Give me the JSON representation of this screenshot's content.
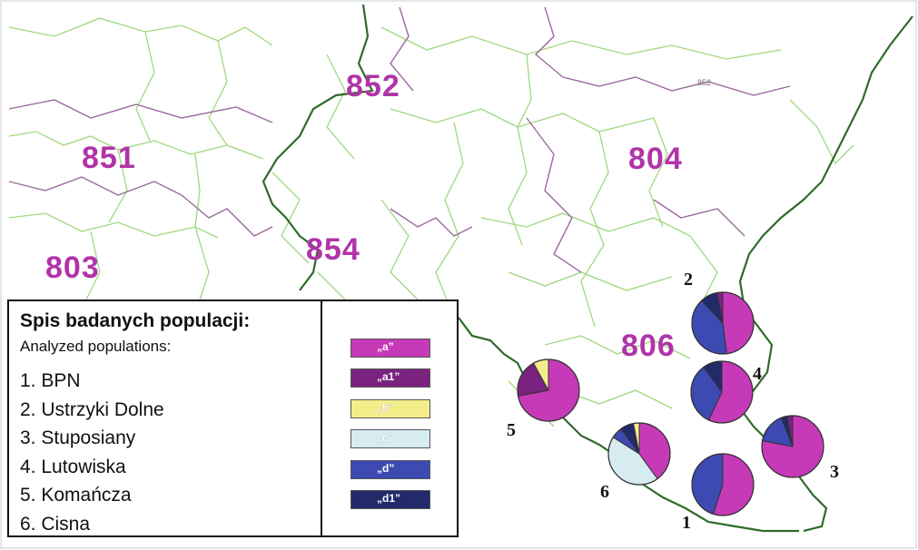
{
  "region_labels": {
    "r852_large": "852",
    "r852_small": "852",
    "r851": "851",
    "r804": "804",
    "r803": "803",
    "r854": "854",
    "r806": "806"
  },
  "legend": {
    "title": "Spis badanych populacji:",
    "subtitle": "Analyzed populations:",
    "populations": [
      {
        "num": "1",
        "text": "1. BPN"
      },
      {
        "num": "2",
        "text": "2. Ustrzyki Dolne"
      },
      {
        "num": "3",
        "text": "3. Stuposiany"
      },
      {
        "num": "4",
        "text": "4. Lutowiska"
      },
      {
        "num": "5",
        "text": "5. Komańcza"
      },
      {
        "num": "6",
        "text": "6. Cisna"
      }
    ],
    "haplotypes": [
      {
        "label": "„a”",
        "color": "#c63ab8"
      },
      {
        "label": "„a1”",
        "color": "#7a2280"
      },
      {
        "label": "„b”",
        "color": "#f4ee8a"
      },
      {
        "label": "„c”",
        "color": "#d6ecf0"
      },
      {
        "label": "„d”",
        "color": "#3c4ab2"
      },
      {
        "label": "„d1”",
        "color": "#222a6a"
      }
    ]
  },
  "pie_labels": {
    "p1": "1",
    "p2": "2",
    "p3": "3",
    "p4": "4",
    "p5": "5",
    "p6": "6"
  },
  "pies": [
    {
      "id": "pie-1",
      "num": "1",
      "shares": {
        "a": 0.55,
        "d": 0.45
      }
    },
    {
      "id": "pie-2",
      "num": "2",
      "shares": {
        "a": 0.48,
        "d": 0.4,
        "d1": 0.09,
        "a1": 0.03
      }
    },
    {
      "id": "pie-3",
      "num": "3",
      "shares": {
        "a": 0.78,
        "d": 0.16,
        "d1": 0.03,
        "a1": 0.03
      }
    },
    {
      "id": "pie-4",
      "num": "4",
      "shares": {
        "a": 0.57,
        "d": 0.33,
        "d1": 0.1
      }
    },
    {
      "id": "pie-5",
      "num": "5",
      "shares": {
        "a": 0.72,
        "a1": 0.2,
        "b": 0.08
      }
    },
    {
      "id": "pie-6",
      "num": "6",
      "shares": {
        "a": 0.4,
        "c": 0.44,
        "d": 0.06,
        "d1": 0.07,
        "b": 0.03
      }
    }
  ],
  "colors": {
    "boundary_green": "#9fd87f",
    "boundary_dark_green": "#2f6b2a",
    "boundary_purple": "#9a6a9e",
    "label_magenta": "#b034a8"
  }
}
